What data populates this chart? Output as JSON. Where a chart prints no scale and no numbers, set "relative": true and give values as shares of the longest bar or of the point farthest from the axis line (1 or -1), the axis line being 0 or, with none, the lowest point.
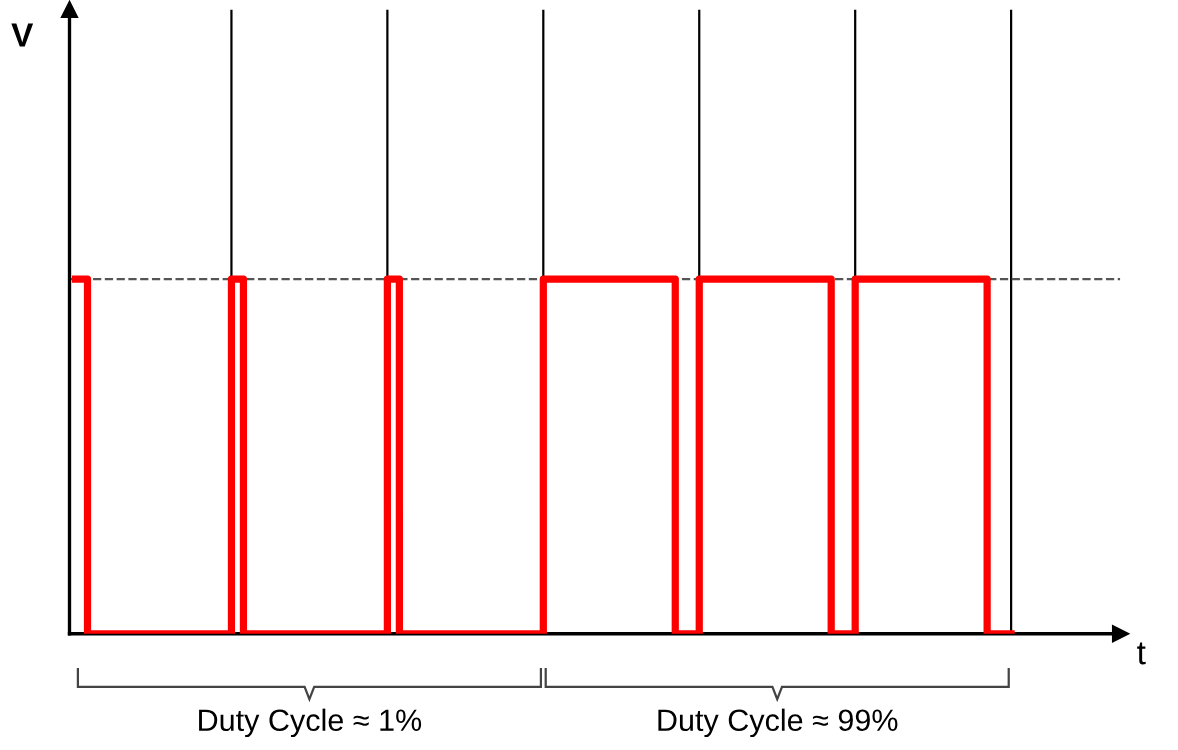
{
  "chart_data": {
    "type": "step",
    "relative": true,
    "xlabel": "t",
    "categories": [
      null,
      null,
      null,
      null,
      null,
      null,
      null,
      null,
      null,
      null,
      null,
      null,
      null,
      null,
      null,
      null,
      null,
      null,
      null,
      null,
      null,
      null,
      null,
      null,
      null,
      null,
      null,
      null,
      null,
      null,
      null,
      null,
      null,
      null,
      null,
      null,
      null,
      null,
      null,
      null,
      null,
      null,
      null,
      null,
      null,
      null,
      null,
      null,
      null,
      null,
      null,
      null,
      null,
      null,
      null,
      null,
      null,
      null,
      null,
      null,
      null,
      null,
      null,
      null,
      null,
      null,
      null,
      null,
      null,
      null,
      null,
      null,
      null,
      null,
      null,
      null,
      null,
      null,
      null
    ],
    "series": [
      {
        "color": "#ff0000",
        "values": [
          1,
          0,
          0,
          0,
          0,
          0,
          0,
          0,
          0,
          0,
          0,
          0,
          0,
          1,
          0,
          0,
          0,
          0,
          0,
          0,
          0,
          0,
          0,
          0,
          0,
          0,
          1,
          0,
          0,
          0,
          0,
          0,
          0,
          0,
          0,
          0,
          0,
          0,
          0,
          1,
          1,
          1,
          1,
          1,
          1,
          1,
          1,
          1,
          1,
          1,
          0,
          0,
          1,
          1,
          1,
          1,
          1,
          1,
          1,
          1,
          1,
          1,
          1,
          0,
          0,
          1,
          1,
          1,
          1,
          1,
          1,
          1,
          1,
          1,
          1,
          1,
          0,
          0,
          0
        ]
      }
    ],
    "ref_lines": [
      {
        "axis": "y",
        "value": 1,
        "color": "#555555",
        "line_style": "dashed"
      }
    ],
    "grid": "x",
    "annotations": [
      "V",
      "Duty Cycle ≈ 1%",
      "Duty Cycle ≈ 99%"
    ],
    "legend": false,
    "tick_labels": false,
    "line_style": "solid",
    "marker": "none"
  }
}
